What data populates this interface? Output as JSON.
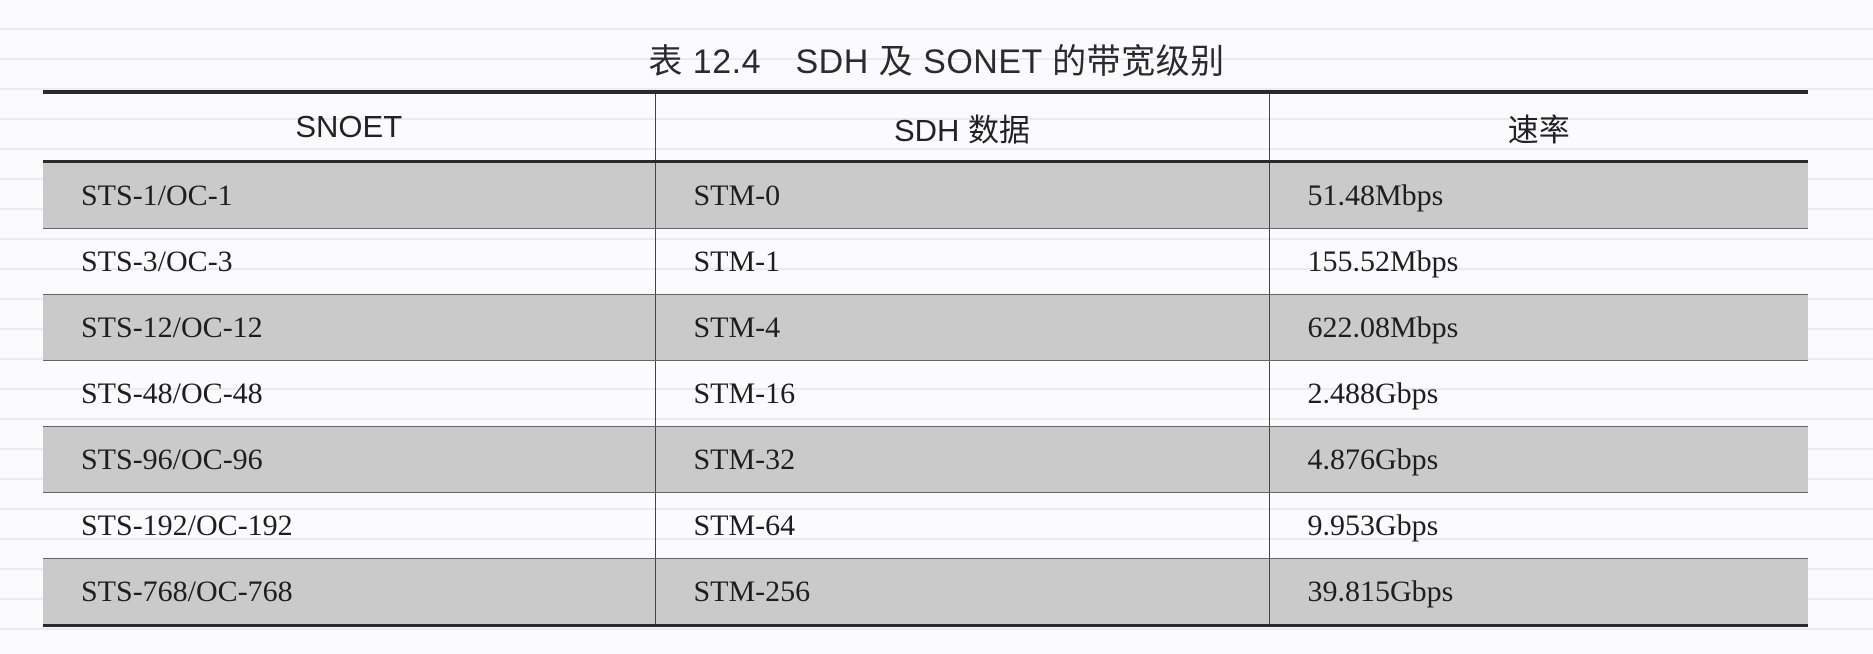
{
  "title": "表 12.4　SDH 及 SONET 的带宽级别",
  "table": {
    "headers": [
      "SNOET",
      "SDH 数据",
      "速率"
    ],
    "rows": [
      [
        "STS-1/OC-1",
        "STM-0",
        "51.48Mbps"
      ],
      [
        "STS-3/OC-3",
        "STM-1",
        "155.52Mbps"
      ],
      [
        "STS-12/OC-12",
        "STM-4",
        "622.08Mbps"
      ],
      [
        "STS-48/OC-48",
        "STM-16",
        "2.488Gbps"
      ],
      [
        "STS-96/OC-96",
        "STM-32",
        "4.876Gbps"
      ],
      [
        "STS-192/OC-192",
        "STM-64",
        "9.953Gbps"
      ],
      [
        "STS-768/OC-768",
        "STM-256",
        "39.815Gbps"
      ]
    ]
  },
  "colors": {
    "shaded_row": "#cacaca",
    "rule": "#2a2a2a"
  }
}
